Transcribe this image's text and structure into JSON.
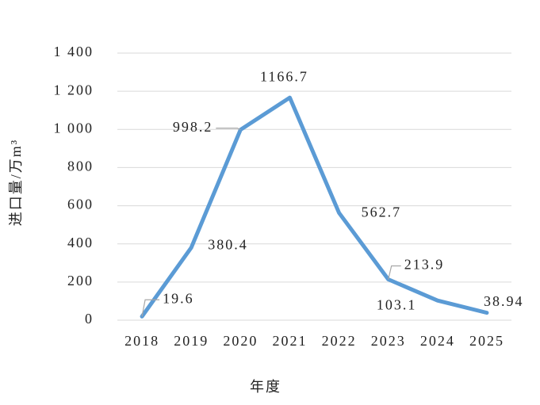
{
  "chart_data": {
    "type": "line",
    "x_label": "年度",
    "y_label": "进口量/万m³",
    "categories": [
      "2018",
      "2019",
      "2020",
      "2021",
      "2022",
      "2023",
      "2024",
      "2025"
    ],
    "values": [
      19.6,
      380.4,
      998.2,
      1166.7,
      562.7,
      213.9,
      103.1,
      38.94
    ],
    "color": "#5b9bd5",
    "ylim": [
      0,
      1400
    ],
    "yticks": [
      0,
      200,
      400,
      600,
      800,
      {
        "value": 1000,
        "label": "1 000"
      },
      {
        "value": 1200,
        "label": "1 200"
      },
      {
        "value": 1400,
        "label": "1 400"
      }
    ],
    "grid": true
  }
}
